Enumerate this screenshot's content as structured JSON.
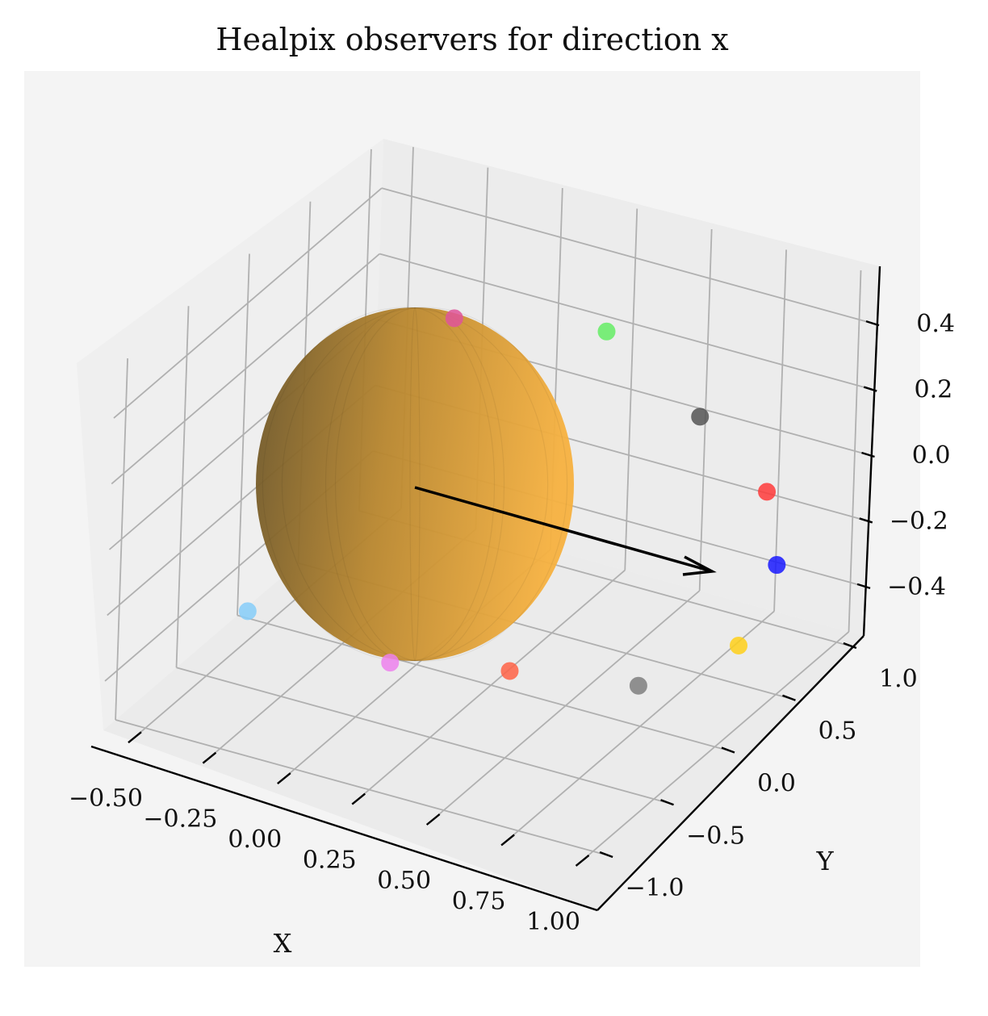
{
  "chart_data": {
    "type": "scatter3d",
    "title": "Healpix observers for direction x",
    "xlabel": "X",
    "ylabel": "Y",
    "zlabel": "",
    "x_ticks": [
      "−0.50",
      "−0.25",
      "0.00",
      "0.25",
      "0.50",
      "0.75",
      "1.00"
    ],
    "y_ticks": [
      "−1.0",
      "−0.5",
      "0.0",
      "0.5",
      "1.0"
    ],
    "z_ticks": [
      "−0.4",
      "−0.2",
      "0.0",
      "0.2",
      "0.4"
    ],
    "xlim": [
      -0.6,
      1.05
    ],
    "ylim": [
      -1.1,
      1.1
    ],
    "zlim": [
      -0.55,
      0.55
    ],
    "grid": true,
    "sphere": {
      "color": "#f5a623",
      "opacity": 0.85
    },
    "direction_vector": {
      "from": [
        0,
        0,
        0
      ],
      "to": [
        1,
        0,
        0
      ],
      "color": "#000000"
    },
    "observers": [
      {
        "color": "#e0559a",
        "x": -0.05,
        "y": 0.35,
        "z": 0.38
      },
      {
        "color": "#66ee66",
        "x": 0.3,
        "y": 0.75,
        "z": 0.3
      },
      {
        "color": "#555555",
        "x": 0.6,
        "y": 0.8,
        "z": 0.1
      },
      {
        "color": "#ff3b3b",
        "x": 0.85,
        "y": 0.75,
        "z": -0.05
      },
      {
        "color": "#1a1aff",
        "x": 0.95,
        "y": 0.6,
        "z": -0.2
      },
      {
        "color": "#ffd11a",
        "x": 0.95,
        "y": 0.3,
        "z": -0.35
      },
      {
        "color": "#808080",
        "x": 0.72,
        "y": 0.05,
        "z": -0.45
      },
      {
        "color": "#ff6347",
        "x": 0.35,
        "y": -0.1,
        "z": -0.45
      },
      {
        "color": "#ee82ee",
        "x": 0.05,
        "y": -0.35,
        "z": -0.42
      },
      {
        "color": "#87cefa",
        "x": -0.35,
        "y": -0.55,
        "z": -0.3
      }
    ]
  }
}
